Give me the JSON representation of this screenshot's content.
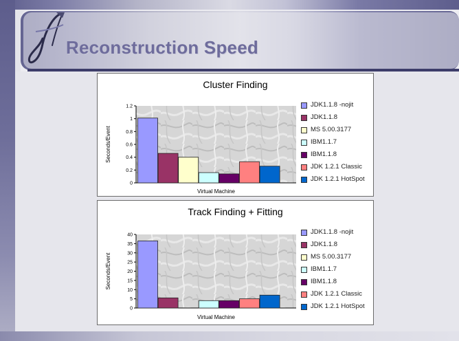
{
  "slide": {
    "title": "Reconstruction Speed",
    "logo_icon": "swoosh-logo-icon",
    "colors": {
      "title": "#6e6c9c",
      "band_dark": "#5d5d8c",
      "band_light": "#d8d8e2",
      "background": "#e6e6ec"
    }
  },
  "chart_data": [
    {
      "type": "bar",
      "title": "Cluster Finding",
      "xlabel": "Virtual Machine",
      "ylabel": "Seconds/Event",
      "ylim": [
        0,
        1.2
      ],
      "yticks": [
        "0",
        "0.2",
        "0.4",
        "0.6",
        "0.8",
        "1",
        "1.2"
      ],
      "yticks_values": [
        0,
        0.2,
        0.4,
        0.6,
        0.8,
        1,
        1.2
      ],
      "grid": false,
      "legend_position": "right",
      "series": [
        {
          "name": "JDK1.1.8 -nojit",
          "color": "#9999ff",
          "value": 1.01
        },
        {
          "name": "JDK1.1.8",
          "color": "#993366",
          "value": 0.46
        },
        {
          "name": "MS 5.00.3177",
          "color": "#ffffcc",
          "value": 0.4
        },
        {
          "name": "IBM1.1.7",
          "color": "#ccffff",
          "value": 0.16
        },
        {
          "name": "IBM1.1.8",
          "color": "#660066",
          "value": 0.14
        },
        {
          "name": "JDK 1.2.1 Classic",
          "color": "#ff8080",
          "value": 0.33
        },
        {
          "name": "JDK 1.2.1 HotSpot",
          "color": "#0066cc",
          "value": 0.26
        }
      ]
    },
    {
      "type": "bar",
      "title": "Track Finding + Fitting",
      "xlabel": "Virtual Machine",
      "ylabel": "Seconds/Event",
      "ylim": [
        0,
        40
      ],
      "yticks": [
        "0",
        "5",
        "10",
        "15",
        "20",
        "25",
        "30",
        "35",
        "40"
      ],
      "yticks_values": [
        0,
        5,
        10,
        15,
        20,
        25,
        30,
        35,
        40
      ],
      "grid": false,
      "legend_position": "right",
      "series": [
        {
          "name": "JDK1.1.8 -nojit",
          "color": "#9999ff",
          "value": 36.5
        },
        {
          "name": "JDK1.1.8",
          "color": "#993366",
          "value": 5.5
        },
        {
          "name": "MS 5.00.3177",
          "color": "#ffffcc",
          "value": 0
        },
        {
          "name": "IBM1.1.7",
          "color": "#ccffff",
          "value": 4
        },
        {
          "name": "IBM1.1.8",
          "color": "#660066",
          "value": 4
        },
        {
          "name": "JDK 1.2.1 Classic",
          "color": "#ff8080",
          "value": 5
        },
        {
          "name": "JDK 1.2.1 HotSpot",
          "color": "#0066cc",
          "value": 7
        }
      ]
    }
  ]
}
